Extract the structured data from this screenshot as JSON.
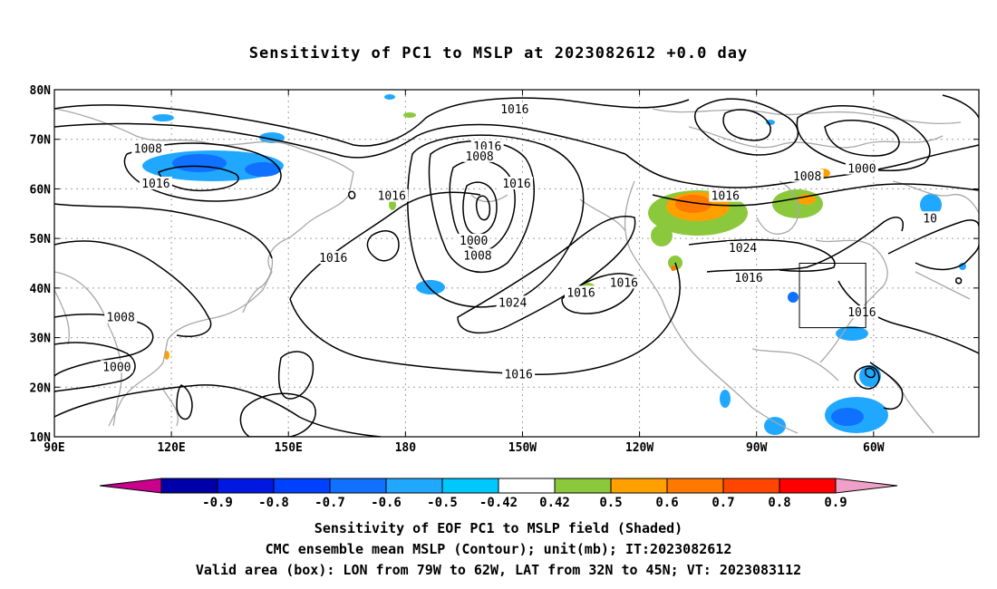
{
  "title": "Sensitivity of PC1 to MSLP at 2023082612 +0.0 day",
  "footer": {
    "line1": "Sensitivity of EOF PC1 to MSLP field (Shaded)",
    "line2": "CMC ensemble mean MSLP (Contour); unit(mb); IT:2023082612",
    "line3": "Valid area (box): LON from 79W to 62W, LAT from 32N to 45N; VT: 2023083112"
  },
  "map": {
    "lon_ticks": [
      {
        "lon": 90,
        "label": "90E"
      },
      {
        "lon": 120,
        "label": "120E"
      },
      {
        "lon": 150,
        "label": "150E"
      },
      {
        "lon": 180,
        "label": "180"
      },
      {
        "lon": 210,
        "label": "150W"
      },
      {
        "lon": 240,
        "label": "120W"
      },
      {
        "lon": 270,
        "label": "90W"
      },
      {
        "lon": 300,
        "label": "60W"
      }
    ],
    "lat_ticks": [
      {
        "lat": 80,
        "label": "80N"
      },
      {
        "lat": 70,
        "label": "70N"
      },
      {
        "lat": 60,
        "label": "60N"
      },
      {
        "lat": 50,
        "label": "50N"
      },
      {
        "lat": 40,
        "label": "40N"
      },
      {
        "lat": 30,
        "label": "30N"
      },
      {
        "lat": 20,
        "label": "20N"
      },
      {
        "lat": 10,
        "label": "10N"
      }
    ],
    "valid_box": {
      "lon_min": 281,
      "lon_max": 298,
      "lat_min": 32,
      "lat_max": 45
    },
    "contour_labels": [
      {
        "text": "1016",
        "lon": 208,
        "lat": 76
      },
      {
        "text": "1016",
        "lon": 201,
        "lat": 68.5
      },
      {
        "text": "1008",
        "lon": 199,
        "lat": 66.5
      },
      {
        "text": "1008",
        "lon": 114,
        "lat": 68
      },
      {
        "text": "1016",
        "lon": 116,
        "lat": 61
      },
      {
        "text": "1016",
        "lon": 176.5,
        "lat": 58.5
      },
      {
        "text": "1016",
        "lon": 208.5,
        "lat": 61
      },
      {
        "text": "1000",
        "lon": 197.5,
        "lat": 49.5
      },
      {
        "text": "1008",
        "lon": 198.5,
        "lat": 46.5
      },
      {
        "text": "1016",
        "lon": 161.5,
        "lat": 46
      },
      {
        "text": "1024",
        "lon": 207.5,
        "lat": 37
      },
      {
        "text": "1016",
        "lon": 225,
        "lat": 39
      },
      {
        "text": "1016",
        "lon": 236,
        "lat": 41
      },
      {
        "text": "1016",
        "lon": 262,
        "lat": 58.5
      },
      {
        "text": "1024",
        "lon": 266.5,
        "lat": 48
      },
      {
        "text": "1016",
        "lon": 268,
        "lat": 42
      },
      {
        "text": "1008",
        "lon": 283,
        "lat": 62.5
      },
      {
        "text": "1000",
        "lon": 297,
        "lat": 64
      },
      {
        "text": "1016",
        "lon": 297,
        "lat": 35
      },
      {
        "text": "1008",
        "lon": 107,
        "lat": 34
      },
      {
        "text": "1000",
        "lon": 106,
        "lat": 24
      },
      {
        "text": "1016",
        "lon": 209,
        "lat": 22.5
      },
      {
        "text": "10",
        "lon": 314.5,
        "lat": 54
      }
    ],
    "colors": {
      "contour": "#000000",
      "coast": "#a8a8a8",
      "grid": "#a0a0a0"
    }
  },
  "colorbar": {
    "labels": [
      "-0.9",
      "-0.8",
      "-0.7",
      "-0.6",
      "-0.5",
      "-0.42",
      "0.42",
      "0.5",
      "0.6",
      "0.7",
      "0.8",
      "0.9"
    ],
    "left_arrow_color": "#c8008c",
    "right_arrow_color": "#f0a0c8",
    "colors": [
      "#0000a8",
      "#0018e0",
      "#0040ff",
      "#1070ff",
      "#20a8ff",
      "#00c8ff",
      "#ffffff",
      "#8cc83c",
      "#ffa000",
      "#ff7800",
      "#ff4600",
      "#ff0000"
    ]
  }
}
